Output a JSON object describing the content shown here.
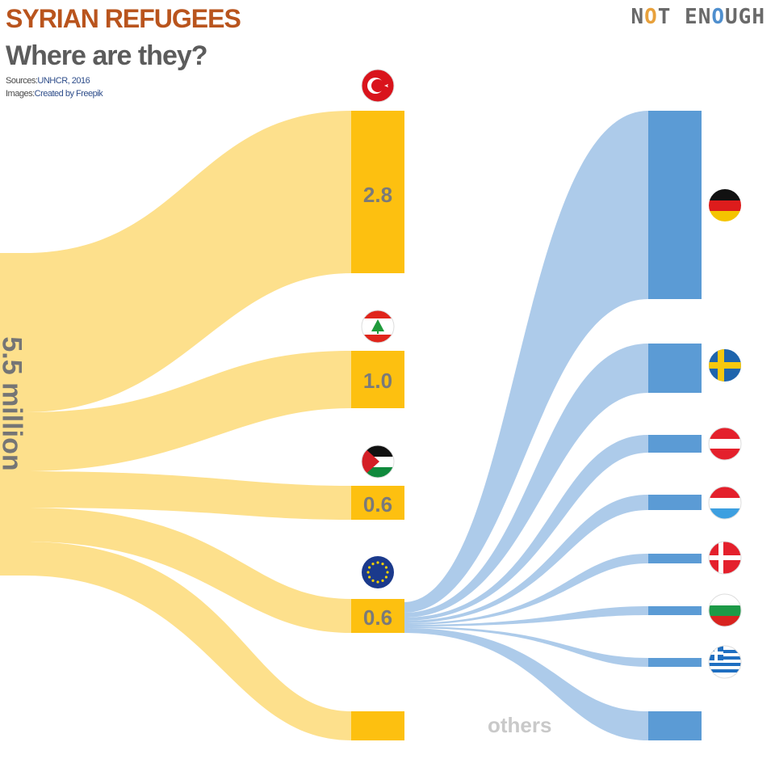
{
  "header": {
    "title": "SYRIAN REFUGEES",
    "subtitle": "Where are they?",
    "sources_label": "Sources:",
    "sources_value": "UNHCR, 2016",
    "images_label": "Images:",
    "images_value": "Created by Freepik",
    "logo_text": "NOT ENOUGH"
  },
  "total_label": "5.5 million",
  "others_label": "others",
  "colors": {
    "host_flow": "#fde08c",
    "host_node": "#fdc010",
    "eu_flow": "#adcbea",
    "eu_node": "#5b9bd5",
    "node_text": "#7a7a7a"
  },
  "nodes": [
    {
      "id": "turkey",
      "value_label": "2.8",
      "flag": "turkey-flag-icon"
    },
    {
      "id": "lebanon",
      "value_label": "1.0",
      "flag": "lebanon-flag-icon"
    },
    {
      "id": "jordan",
      "value_label": "0.6",
      "flag": "jordan-flag-icon"
    },
    {
      "id": "eu",
      "value_label": "0.6",
      "flag": "eu-flag-icon"
    },
    {
      "id": "others",
      "value_label": ""
    }
  ],
  "eu_destinations": [
    {
      "id": "germany",
      "flag": "germany-flag-icon"
    },
    {
      "id": "sweden",
      "flag": "sweden-flag-icon"
    },
    {
      "id": "austria",
      "flag": "austria-flag-icon"
    },
    {
      "id": "netherlands",
      "flag": "netherlands-flag-icon"
    },
    {
      "id": "denmark",
      "flag": "denmark-flag-icon"
    },
    {
      "id": "bulgaria",
      "flag": "bulgaria-flag-icon"
    },
    {
      "id": "greece",
      "flag": "greece-flag-icon"
    },
    {
      "id": "others",
      "flag": ""
    }
  ]
}
